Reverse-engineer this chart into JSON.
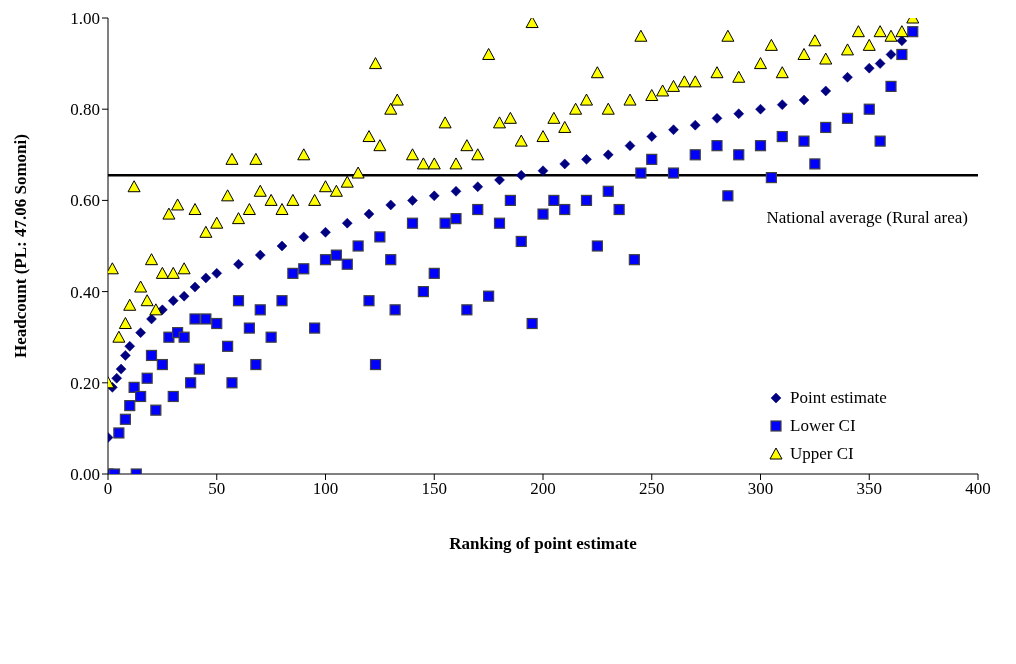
{
  "chart_data": {
    "type": "scatter",
    "xlabel": "Ranking of point estimate",
    "ylabel": "Headcount (PL: 47.06 Somoni)",
    "xlim": [
      0,
      400
    ],
    "xticks": [
      0,
      50,
      100,
      150,
      200,
      250,
      300,
      350,
      400
    ],
    "ylim": [
      0,
      1
    ],
    "yticks": [
      {
        "value": 0,
        "label": "0.00"
      },
      {
        "value": 0.2,
        "label": "0.20"
      },
      {
        "value": 0.4,
        "label": "0.40"
      },
      {
        "value": 0.6,
        "label": "0.60"
      },
      {
        "value": 0.8,
        "label": "0.80"
      },
      {
        "value": 1,
        "label": "1.00"
      }
    ],
    "grid": false,
    "legend": "bottom right",
    "ref_lines": [
      {
        "axis": "y",
        "value": 0.655,
        "label": "National average (Rural area)",
        "color": "#000000"
      }
    ],
    "series": [
      {
        "name": "Point estimate",
        "color": "#000080",
        "marker": "diamond",
        "x": [
          0,
          2,
          4,
          6,
          8,
          10,
          15,
          20,
          25,
          30,
          35,
          40,
          45,
          50,
          60,
          70,
          80,
          90,
          100,
          110,
          120,
          130,
          140,
          150,
          160,
          170,
          180,
          190,
          200,
          210,
          220,
          230,
          240,
          250,
          260,
          270,
          280,
          290,
          300,
          310,
          320,
          330,
          340,
          350,
          355,
          360,
          365
        ],
        "values": [
          0.08,
          0.19,
          0.21,
          0.23,
          0.26,
          0.28,
          0.31,
          0.34,
          0.36,
          0.38,
          0.39,
          0.41,
          0.43,
          0.44,
          0.46,
          0.48,
          0.5,
          0.52,
          0.53,
          0.55,
          0.57,
          0.59,
          0.6,
          0.61,
          0.62,
          0.63,
          0.645,
          0.655,
          0.665,
          0.68,
          0.69,
          0.7,
          0.72,
          0.74,
          0.755,
          0.765,
          0.78,
          0.79,
          0.8,
          0.81,
          0.82,
          0.84,
          0.87,
          0.89,
          0.9,
          0.92,
          0.95
        ]
      },
      {
        "name": "Lower CI",
        "color": "#0000ff",
        "marker": "square",
        "x": [
          0,
          3,
          5,
          8,
          10,
          13,
          12,
          15,
          18,
          20,
          22,
          25,
          28,
          30,
          32,
          35,
          38,
          40,
          42,
          45,
          50,
          55,
          57,
          60,
          65,
          68,
          70,
          75,
          80,
          85,
          90,
          95,
          100,
          105,
          110,
          115,
          120,
          123,
          125,
          130,
          132,
          140,
          145,
          150,
          155,
          160,
          165,
          170,
          175,
          180,
          185,
          190,
          195,
          200,
          205,
          210,
          220,
          225,
          230,
          235,
          242,
          245,
          250,
          260,
          270,
          280,
          285,
          290,
          300,
          305,
          310,
          320,
          325,
          330,
          340,
          350,
          355,
          360,
          365,
          370
        ],
        "values": [
          0,
          0,
          0.09,
          0.12,
          0.15,
          0,
          0.19,
          0.17,
          0.21,
          0.26,
          0.14,
          0.24,
          0.3,
          0.17,
          0.31,
          0.3,
          0.2,
          0.34,
          0.23,
          0.34,
          0.33,
          0.28,
          0.2,
          0.38,
          0.32,
          0.24,
          0.36,
          0.3,
          0.38,
          0.44,
          0.45,
          0.32,
          0.47,
          0.48,
          0.46,
          0.5,
          0.38,
          0.24,
          0.52,
          0.47,
          0.36,
          0.55,
          0.4,
          0.44,
          0.55,
          0.56,
          0.36,
          0.58,
          0.39,
          0.55,
          0.6,
          0.51,
          0.33,
          0.57,
          0.6,
          0.58,
          0.6,
          0.5,
          0.62,
          0.58,
          0.47,
          0.66,
          0.69,
          0.66,
          0.7,
          0.72,
          0.61,
          0.7,
          0.72,
          0.65,
          0.74,
          0.73,
          0.68,
          0.76,
          0.78,
          0.8,
          0.73,
          0.85,
          0.92,
          0.97
        ]
      },
      {
        "name": "Upper CI",
        "color": "#ffff00",
        "marker": "triangle",
        "x": [
          0,
          2,
          5,
          8,
          10,
          12,
          15,
          18,
          20,
          22,
          25,
          28,
          30,
          32,
          35,
          40,
          45,
          50,
          55,
          57,
          60,
          65,
          68,
          70,
          75,
          80,
          85,
          90,
          95,
          100,
          105,
          110,
          115,
          120,
          123,
          125,
          130,
          133,
          140,
          145,
          150,
          155,
          160,
          165,
          170,
          175,
          180,
          185,
          190,
          195,
          200,
          205,
          210,
          215,
          220,
          225,
          230,
          240,
          245,
          250,
          255,
          260,
          265,
          270,
          280,
          285,
          290,
          300,
          305,
          310,
          320,
          325,
          330,
          340,
          345,
          350,
          355,
          360,
          365,
          370
        ],
        "values": [
          0.2,
          0.45,
          0.3,
          0.33,
          0.37,
          0.63,
          0.41,
          0.38,
          0.47,
          0.36,
          0.44,
          0.57,
          0.44,
          0.59,
          0.45,
          0.58,
          0.53,
          0.55,
          0.61,
          0.69,
          0.56,
          0.58,
          0.69,
          0.62,
          0.6,
          0.58,
          0.6,
          0.7,
          0.6,
          0.63,
          0.62,
          0.64,
          0.66,
          0.74,
          0.9,
          0.72,
          0.8,
          0.82,
          0.7,
          0.68,
          0.68,
          0.77,
          0.68,
          0.72,
          0.7,
          0.92,
          0.77,
          0.78,
          0.73,
          0.99,
          0.74,
          0.78,
          0.76,
          0.8,
          0.82,
          0.88,
          0.8,
          0.82,
          0.96,
          0.83,
          0.84,
          0.85,
          0.86,
          0.86,
          0.88,
          0.96,
          0.87,
          0.9,
          0.94,
          0.88,
          0.92,
          0.95,
          0.91,
          0.93,
          0.97,
          0.94,
          0.97,
          0.96,
          0.97,
          1.0
        ]
      }
    ]
  }
}
